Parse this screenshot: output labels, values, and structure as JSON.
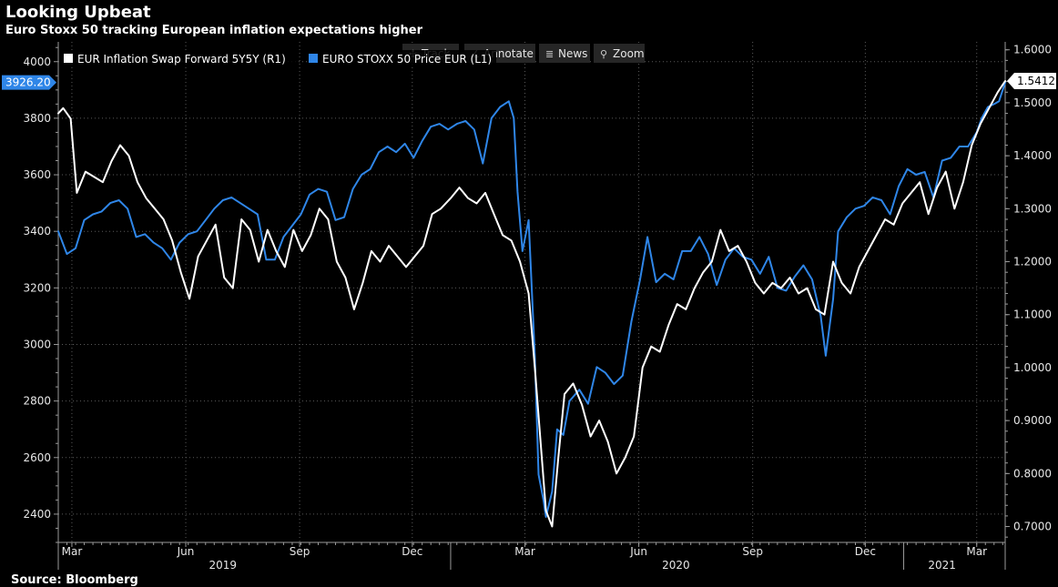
{
  "header": {
    "title": "Looking Upbeat",
    "subtitle": "Euro Stoxx 50 tracking European inflation expectations higher"
  },
  "footer": {
    "source": "Source: Bloomberg"
  },
  "toolbar": {
    "items": [
      {
        "icon": "track-icon",
        "glyph": "✣",
        "label": "Track"
      },
      {
        "icon": "annotate-icon",
        "glyph": "∠",
        "label": "Annotate"
      },
      {
        "icon": "news-icon",
        "glyph": "≣",
        "label": "News"
      },
      {
        "icon": "zoom-icon",
        "glyph": "⚲",
        "label": "Zoom"
      }
    ]
  },
  "colors": {
    "background": "#000000",
    "inflation": "#ffffff",
    "stoxx": "#2f86e8",
    "grid": "#5a5a5a",
    "axis": "#9a9a9a",
    "tick_label": "#e6e6e6",
    "toolbar_bg": "#262626"
  },
  "chart_data": {
    "type": "line",
    "x_start": "2019-02-18",
    "x_end": "2021-03-24",
    "x_month_ticks": [
      {
        "date": "2019-03-01",
        "label": "Mar"
      },
      {
        "date": "2019-06-01",
        "label": "Jun"
      },
      {
        "date": "2019-09-01",
        "label": "Sep"
      },
      {
        "date": "2019-12-01",
        "label": "Dec"
      },
      {
        "date": "2020-03-01",
        "label": "Mar"
      },
      {
        "date": "2020-06-01",
        "label": "Jun"
      },
      {
        "date": "2020-09-01",
        "label": "Sep"
      },
      {
        "date": "2020-12-01",
        "label": "Dec"
      },
      {
        "date": "2021-03-01",
        "label": "Mar"
      }
    ],
    "x_year_labels": [
      {
        "date": "2019-07-01",
        "label": "2019"
      },
      {
        "date": "2020-07-01",
        "label": "2020"
      },
      {
        "date": "2021-02-01",
        "label": "2021"
      }
    ],
    "x_year_dividers": [
      "2020-01-01",
      "2021-01-01"
    ],
    "left_axis": {
      "min": 2300,
      "max": 4070,
      "ticks": [
        2400,
        2600,
        2800,
        3000,
        3200,
        3400,
        3600,
        3800,
        4000
      ],
      "current_value_label": "3926.20",
      "current_value": 3926.2
    },
    "right_axis": {
      "min": 0.67,
      "max": 1.615,
      "ticks": [
        {
          "value": 0.7,
          "label": "0.7000"
        },
        {
          "value": 0.8,
          "label": "0.8000"
        },
        {
          "value": 0.9,
          "label": "0.9000"
        },
        {
          "value": 1.0,
          "label": "1.0000"
        },
        {
          "value": 1.1,
          "label": "1.1000"
        },
        {
          "value": 1.2,
          "label": "1.2000"
        },
        {
          "value": 1.3,
          "label": "1.3000"
        },
        {
          "value": 1.4,
          "label": "1.4000"
        },
        {
          "value": 1.5,
          "label": "1.5000"
        },
        {
          "value": 1.6,
          "label": "1.6000"
        }
      ],
      "current_value_label": "1.5412",
      "current_value": 1.5412
    },
    "grid": true,
    "legend_position": "top-left",
    "series": [
      {
        "name": "EUR Inflation Swap Forward 5Y5Y  (R1)",
        "axis": "right",
        "color": "#ffffff",
        "points": [
          [
            "2019-02-18",
            1.48
          ],
          [
            "2019-02-22",
            1.49
          ],
          [
            "2019-02-28",
            1.47
          ],
          [
            "2019-03-05",
            1.33
          ],
          [
            "2019-03-12",
            1.37
          ],
          [
            "2019-03-19",
            1.36
          ],
          [
            "2019-03-26",
            1.35
          ],
          [
            "2019-04-02",
            1.39
          ],
          [
            "2019-04-09",
            1.42
          ],
          [
            "2019-04-16",
            1.4
          ],
          [
            "2019-04-23",
            1.35
          ],
          [
            "2019-04-30",
            1.32
          ],
          [
            "2019-05-07",
            1.3
          ],
          [
            "2019-05-14",
            1.28
          ],
          [
            "2019-05-21",
            1.24
          ],
          [
            "2019-05-28",
            1.18
          ],
          [
            "2019-06-04",
            1.13
          ],
          [
            "2019-06-11",
            1.21
          ],
          [
            "2019-06-18",
            1.24
          ],
          [
            "2019-06-25",
            1.27
          ],
          [
            "2019-07-02",
            1.17
          ],
          [
            "2019-07-09",
            1.15
          ],
          [
            "2019-07-16",
            1.28
          ],
          [
            "2019-07-23",
            1.26
          ],
          [
            "2019-07-30",
            1.2
          ],
          [
            "2019-08-06",
            1.26
          ],
          [
            "2019-08-13",
            1.22
          ],
          [
            "2019-08-20",
            1.19
          ],
          [
            "2019-08-27",
            1.26
          ],
          [
            "2019-09-03",
            1.22
          ],
          [
            "2019-09-10",
            1.25
          ],
          [
            "2019-09-17",
            1.3
          ],
          [
            "2019-09-24",
            1.28
          ],
          [
            "2019-10-01",
            1.2
          ],
          [
            "2019-10-08",
            1.17
          ],
          [
            "2019-10-15",
            1.11
          ],
          [
            "2019-10-22",
            1.16
          ],
          [
            "2019-10-29",
            1.22
          ],
          [
            "2019-11-05",
            1.2
          ],
          [
            "2019-11-12",
            1.23
          ],
          [
            "2019-11-19",
            1.21
          ],
          [
            "2019-11-26",
            1.19
          ],
          [
            "2019-12-03",
            1.21
          ],
          [
            "2019-12-10",
            1.23
          ],
          [
            "2019-12-17",
            1.29
          ],
          [
            "2019-12-24",
            1.3
          ],
          [
            "2020-01-01",
            1.32
          ],
          [
            "2020-01-08",
            1.34
          ],
          [
            "2020-01-15",
            1.32
          ],
          [
            "2020-01-22",
            1.31
          ],
          [
            "2020-01-29",
            1.33
          ],
          [
            "2020-02-05",
            1.29
          ],
          [
            "2020-02-12",
            1.25
          ],
          [
            "2020-02-19",
            1.24
          ],
          [
            "2020-02-26",
            1.2
          ],
          [
            "2020-03-04",
            1.14
          ],
          [
            "2020-03-09",
            1.0
          ],
          [
            "2020-03-13",
            0.88
          ],
          [
            "2020-03-18",
            0.73
          ],
          [
            "2020-03-23",
            0.7
          ],
          [
            "2020-03-28",
            0.83
          ],
          [
            "2020-04-02",
            0.95
          ],
          [
            "2020-04-09",
            0.97
          ],
          [
            "2020-04-16",
            0.93
          ],
          [
            "2020-04-23",
            0.87
          ],
          [
            "2020-04-30",
            0.9
          ],
          [
            "2020-05-07",
            0.86
          ],
          [
            "2020-05-14",
            0.8
          ],
          [
            "2020-05-21",
            0.83
          ],
          [
            "2020-05-28",
            0.87
          ],
          [
            "2020-06-04",
            1.0
          ],
          [
            "2020-06-11",
            1.04
          ],
          [
            "2020-06-18",
            1.03
          ],
          [
            "2020-06-25",
            1.08
          ],
          [
            "2020-07-02",
            1.12
          ],
          [
            "2020-07-09",
            1.11
          ],
          [
            "2020-07-16",
            1.15
          ],
          [
            "2020-07-23",
            1.18
          ],
          [
            "2020-07-30",
            1.2
          ],
          [
            "2020-08-06",
            1.26
          ],
          [
            "2020-08-13",
            1.22
          ],
          [
            "2020-08-20",
            1.23
          ],
          [
            "2020-08-27",
            1.2
          ],
          [
            "2020-09-03",
            1.16
          ],
          [
            "2020-09-10",
            1.14
          ],
          [
            "2020-09-17",
            1.16
          ],
          [
            "2020-09-24",
            1.15
          ],
          [
            "2020-10-01",
            1.17
          ],
          [
            "2020-10-08",
            1.14
          ],
          [
            "2020-10-15",
            1.15
          ],
          [
            "2020-10-22",
            1.11
          ],
          [
            "2020-10-29",
            1.1
          ],
          [
            "2020-11-05",
            1.2
          ],
          [
            "2020-11-12",
            1.16
          ],
          [
            "2020-11-19",
            1.14
          ],
          [
            "2020-11-26",
            1.19
          ],
          [
            "2020-12-03",
            1.22
          ],
          [
            "2020-12-10",
            1.25
          ],
          [
            "2020-12-17",
            1.28
          ],
          [
            "2020-12-24",
            1.27
          ],
          [
            "2020-12-31",
            1.31
          ],
          [
            "2021-01-07",
            1.33
          ],
          [
            "2021-01-14",
            1.35
          ],
          [
            "2021-01-21",
            1.29
          ],
          [
            "2021-01-28",
            1.34
          ],
          [
            "2021-02-04",
            1.37
          ],
          [
            "2021-02-11",
            1.3
          ],
          [
            "2021-02-18",
            1.35
          ],
          [
            "2021-02-25",
            1.42
          ],
          [
            "2021-03-04",
            1.46
          ],
          [
            "2021-03-11",
            1.49
          ],
          [
            "2021-03-18",
            1.52
          ],
          [
            "2021-03-24",
            1.5412
          ]
        ]
      },
      {
        "name": "EURO STOXX 50 Price EUR  (L1)",
        "axis": "left",
        "color": "#2f86e8",
        "points": [
          [
            "2019-02-18",
            3400
          ],
          [
            "2019-02-25",
            3320
          ],
          [
            "2019-03-04",
            3340
          ],
          [
            "2019-03-11",
            3440
          ],
          [
            "2019-03-18",
            3460
          ],
          [
            "2019-03-25",
            3470
          ],
          [
            "2019-04-01",
            3500
          ],
          [
            "2019-04-08",
            3510
          ],
          [
            "2019-04-15",
            3480
          ],
          [
            "2019-04-22",
            3380
          ],
          [
            "2019-04-29",
            3390
          ],
          [
            "2019-05-06",
            3360
          ],
          [
            "2019-05-13",
            3340
          ],
          [
            "2019-05-20",
            3300
          ],
          [
            "2019-05-27",
            3360
          ],
          [
            "2019-06-03",
            3390
          ],
          [
            "2019-06-10",
            3400
          ],
          [
            "2019-06-17",
            3440
          ],
          [
            "2019-06-24",
            3480
          ],
          [
            "2019-07-01",
            3510
          ],
          [
            "2019-07-08",
            3520
          ],
          [
            "2019-07-15",
            3500
          ],
          [
            "2019-07-22",
            3480
          ],
          [
            "2019-07-29",
            3460
          ],
          [
            "2019-08-05",
            3300
          ],
          [
            "2019-08-12",
            3300
          ],
          [
            "2019-08-19",
            3380
          ],
          [
            "2019-08-26",
            3420
          ],
          [
            "2019-09-02",
            3460
          ],
          [
            "2019-09-09",
            3530
          ],
          [
            "2019-09-16",
            3550
          ],
          [
            "2019-09-23",
            3540
          ],
          [
            "2019-09-30",
            3440
          ],
          [
            "2019-10-07",
            3450
          ],
          [
            "2019-10-14",
            3550
          ],
          [
            "2019-10-21",
            3600
          ],
          [
            "2019-10-28",
            3620
          ],
          [
            "2019-11-04",
            3680
          ],
          [
            "2019-11-11",
            3700
          ],
          [
            "2019-11-18",
            3680
          ],
          [
            "2019-11-25",
            3710
          ],
          [
            "2019-12-02",
            3660
          ],
          [
            "2019-12-09",
            3720
          ],
          [
            "2019-12-16",
            3770
          ],
          [
            "2019-12-23",
            3780
          ],
          [
            "2019-12-30",
            3760
          ],
          [
            "2020-01-06",
            3780
          ],
          [
            "2020-01-13",
            3790
          ],
          [
            "2020-01-20",
            3760
          ],
          [
            "2020-01-27",
            3640
          ],
          [
            "2020-02-03",
            3800
          ],
          [
            "2020-02-10",
            3840
          ],
          [
            "2020-02-17",
            3860
          ],
          [
            "2020-02-21",
            3800
          ],
          [
            "2020-02-24",
            3540
          ],
          [
            "2020-02-28",
            3330
          ],
          [
            "2020-03-04",
            3440
          ],
          [
            "2020-03-09",
            2960
          ],
          [
            "2020-03-12",
            2540
          ],
          [
            "2020-03-16",
            2450
          ],
          [
            "2020-03-18",
            2390
          ],
          [
            "2020-03-23",
            2480
          ],
          [
            "2020-03-27",
            2700
          ],
          [
            "2020-04-01",
            2680
          ],
          [
            "2020-04-06",
            2800
          ],
          [
            "2020-04-14",
            2840
          ],
          [
            "2020-04-21",
            2790
          ],
          [
            "2020-04-28",
            2920
          ],
          [
            "2020-05-05",
            2900
          ],
          [
            "2020-05-12",
            2860
          ],
          [
            "2020-05-19",
            2890
          ],
          [
            "2020-05-26",
            3080
          ],
          [
            "2020-06-02",
            3230
          ],
          [
            "2020-06-08",
            3380
          ],
          [
            "2020-06-15",
            3220
          ],
          [
            "2020-06-22",
            3250
          ],
          [
            "2020-06-29",
            3230
          ],
          [
            "2020-07-06",
            3330
          ],
          [
            "2020-07-13",
            3330
          ],
          [
            "2020-07-20",
            3380
          ],
          [
            "2020-07-27",
            3320
          ],
          [
            "2020-08-03",
            3210
          ],
          [
            "2020-08-10",
            3300
          ],
          [
            "2020-08-17",
            3340
          ],
          [
            "2020-08-24",
            3310
          ],
          [
            "2020-08-31",
            3300
          ],
          [
            "2020-09-07",
            3250
          ],
          [
            "2020-09-14",
            3310
          ],
          [
            "2020-09-21",
            3200
          ],
          [
            "2020-09-28",
            3190
          ],
          [
            "2020-10-05",
            3240
          ],
          [
            "2020-10-12",
            3280
          ],
          [
            "2020-10-19",
            3230
          ],
          [
            "2020-10-26",
            3100
          ],
          [
            "2020-10-30",
            2960
          ],
          [
            "2020-11-05",
            3160
          ],
          [
            "2020-11-09",
            3400
          ],
          [
            "2020-11-16",
            3450
          ],
          [
            "2020-11-23",
            3480
          ],
          [
            "2020-11-30",
            3490
          ],
          [
            "2020-12-07",
            3520
          ],
          [
            "2020-12-14",
            3510
          ],
          [
            "2020-12-21",
            3460
          ],
          [
            "2020-12-28",
            3560
          ],
          [
            "2021-01-04",
            3620
          ],
          [
            "2021-01-11",
            3600
          ],
          [
            "2021-01-18",
            3610
          ],
          [
            "2021-01-25",
            3520
          ],
          [
            "2021-02-01",
            3650
          ],
          [
            "2021-02-08",
            3660
          ],
          [
            "2021-02-15",
            3700
          ],
          [
            "2021-02-22",
            3700
          ],
          [
            "2021-03-01",
            3750
          ],
          [
            "2021-03-05",
            3800
          ],
          [
            "2021-03-10",
            3840
          ],
          [
            "2021-03-15",
            3850
          ],
          [
            "2021-03-19",
            3860
          ],
          [
            "2021-03-24",
            3926.2
          ]
        ]
      }
    ]
  }
}
